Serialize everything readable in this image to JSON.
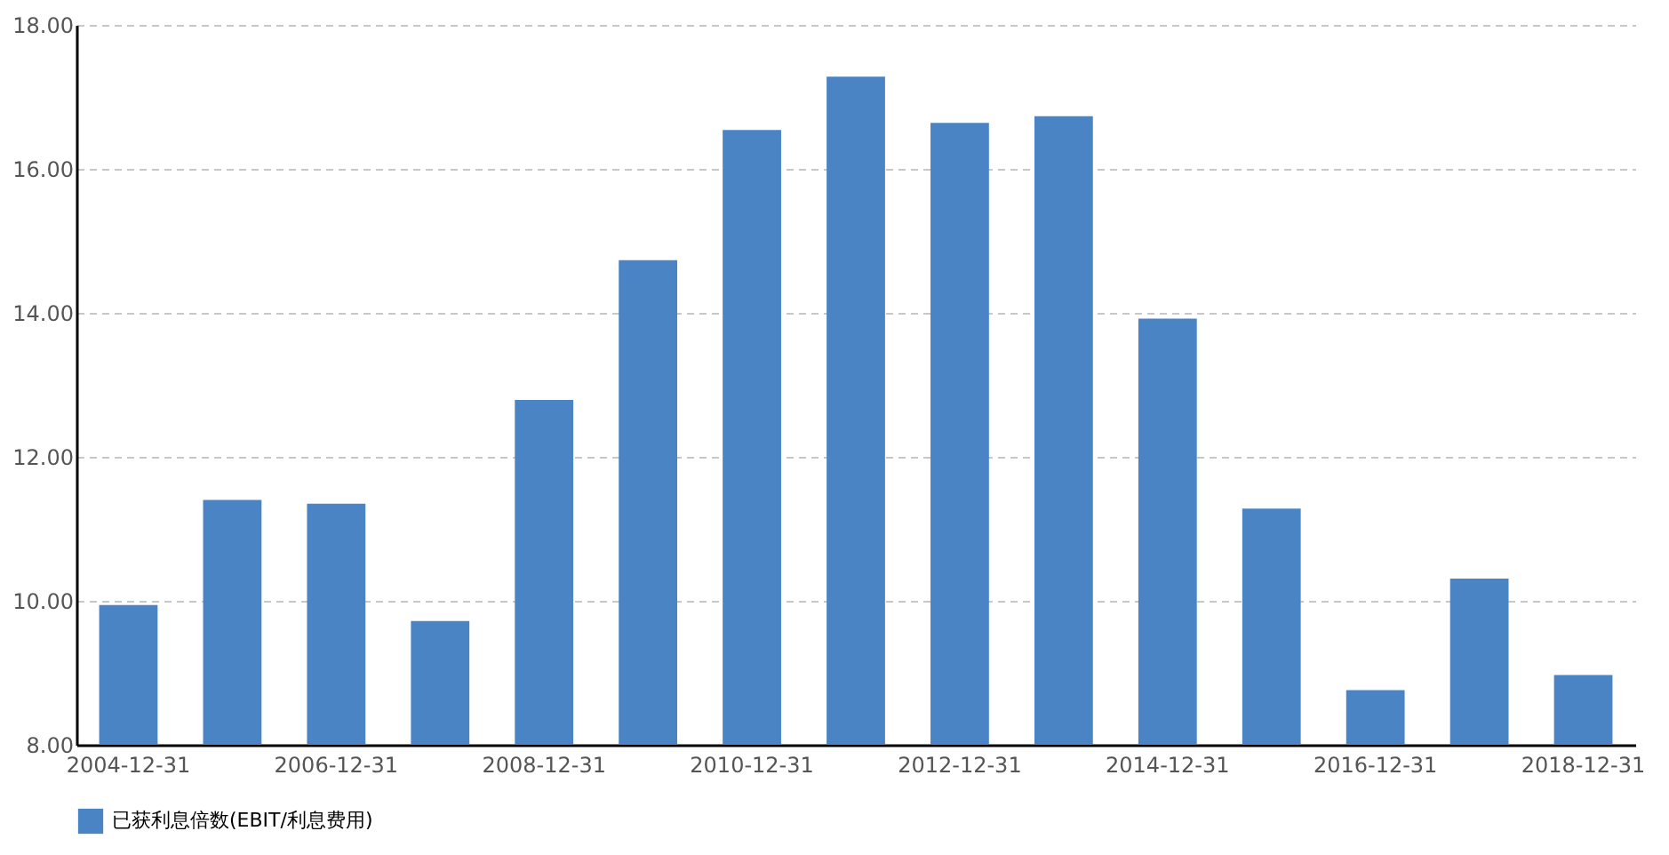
{
  "chart_data": {
    "type": "bar",
    "categories": [
      "2004-12-31",
      null,
      "2006-12-31",
      null,
      "2008-12-31",
      null,
      "2010-12-31",
      null,
      "2012-12-31",
      null,
      "2014-12-31",
      null,
      "2016-12-31",
      null,
      "2018-12-31"
    ],
    "series": [
      {
        "name": "已获利息倍数(EBIT/利息费用)",
        "color": "#4a84c4",
        "values": [
          9.94,
          11.4,
          11.35,
          9.72,
          12.79,
          14.73,
          16.54,
          17.28,
          16.64,
          16.73,
          13.92,
          11.28,
          8.76,
          10.31,
          8.97
        ]
      }
    ],
    "ylim": [
      8,
      18
    ],
    "yticks": [
      {
        "value": 8,
        "label": "8.00"
      },
      {
        "value": 10,
        "label": "10.00"
      },
      {
        "value": 12,
        "label": "12.00"
      },
      {
        "value": 14,
        "label": "14.00"
      },
      {
        "value": 16,
        "label": "16.00"
      },
      {
        "value": 18,
        "label": "18.00"
      }
    ],
    "grid": "y",
    "legend": "bottom"
  }
}
